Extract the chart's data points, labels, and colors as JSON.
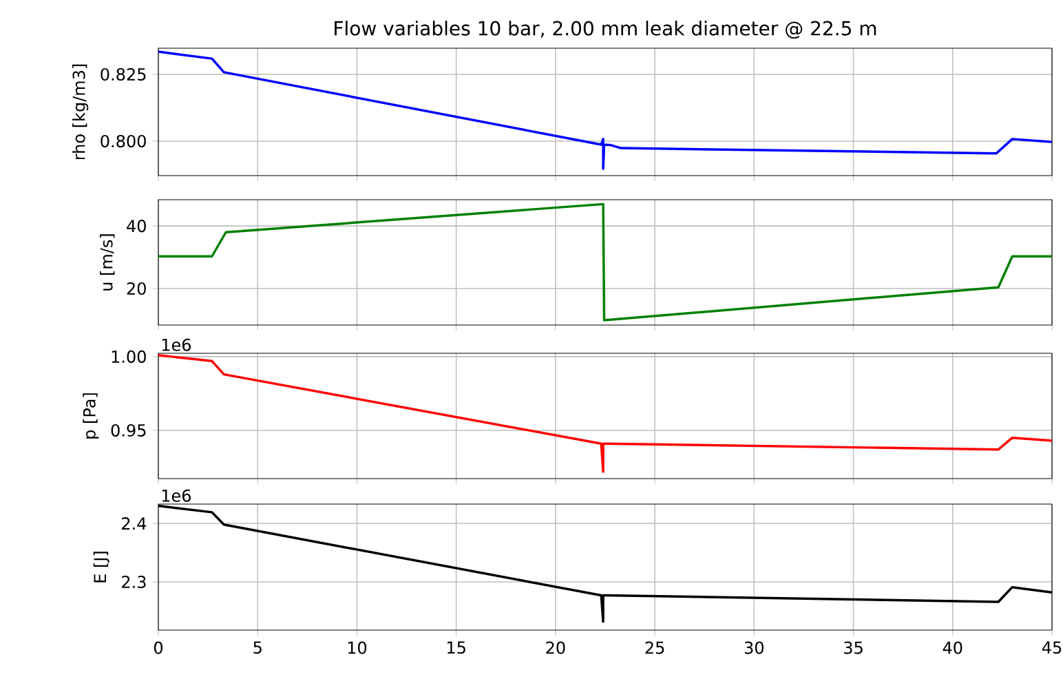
{
  "chart_data": [
    {
      "type": "line",
      "title": "Flow variables 10 bar, 2.00 mm leak diameter @ 22.5 m",
      "ylabel": "rho [kg/m3]",
      "xlim": [
        0,
        45
      ],
      "xticks": [
        0,
        5,
        10,
        15,
        20,
        25,
        30,
        35,
        40,
        45
      ],
      "ylim": [
        0.7871,
        0.8348
      ],
      "yticks": [
        {
          "value": 0.8,
          "label": "0.800"
        },
        0.825
      ],
      "grid": true,
      "tick_labels": "y",
      "series": [
        {
          "color": "#0000ff",
          "x": [
            0,
            2.7,
            3.3,
            22.3,
            22.4,
            22.4,
            22.45,
            22.8,
            23.3,
            42.2,
            43,
            45
          ],
          "values": [
            0.8335,
            0.8309,
            0.8258,
            0.7987,
            0.8008,
            0.7897,
            0.7987,
            0.7985,
            0.7974,
            0.7954,
            0.8008,
            0.7997
          ]
        }
      ]
    },
    {
      "type": "line",
      "ylabel": "u [m/s]",
      "xlim": [
        0,
        45
      ],
      "xticks": [
        0,
        5,
        10,
        15,
        20,
        25,
        30,
        35,
        40,
        45
      ],
      "ylim": [
        8.35,
        48.4
      ],
      "yticks": [
        20,
        40
      ],
      "grid": true,
      "tick_labels": "y",
      "series": [
        {
          "color": "#008000",
          "x": [
            0,
            2.7,
            3.4,
            22.4,
            22.45,
            42.3,
            43,
            45
          ],
          "values": [
            30.3,
            30.3,
            38.0,
            47.0,
            9.9,
            20.4,
            30.3,
            30.3
          ]
        }
      ]
    },
    {
      "type": "line",
      "ylabel": "p [Pa]",
      "annotations": [
        "1e6"
      ],
      "xlim": [
        0,
        45
      ],
      "xticks": [
        0,
        5,
        10,
        15,
        20,
        25,
        30,
        35,
        40,
        45
      ],
      "ylim": [
        0.9173,
        1.0023
      ],
      "yticks": [
        {
          "value": 0.95,
          "label": "0.95"
        },
        {
          "value": 1.0,
          "label": "1.00"
        }
      ],
      "grid": true,
      "tick_labels": "y",
      "series": [
        {
          "color": "#ff0000",
          "x": [
            0,
            2.7,
            3.3,
            22.3,
            22.4,
            22.4,
            22.5,
            42.3,
            43,
            45
          ],
          "values": [
            1.001,
            0.997,
            0.988,
            0.941,
            0.922,
            0.941,
            0.941,
            0.937,
            0.945,
            0.943
          ]
        }
      ]
    },
    {
      "type": "line",
      "ylabel": "E [J]",
      "annotations": [
        "1e6"
      ],
      "xlim": [
        0,
        45
      ],
      "xticks": [
        0,
        5,
        10,
        15,
        20,
        25,
        30,
        35,
        40,
        45
      ],
      "ylim": [
        2.2177,
        2.433
      ],
      "yticks": [
        2.3,
        2.4
      ],
      "grid": true,
      "series": [
        {
          "color": "#000000",
          "x": [
            0,
            2.7,
            3.3,
            22.3,
            22.4,
            22.4,
            22.5,
            42.3,
            43,
            45
          ],
          "values": [
            2.43,
            2.419,
            2.398,
            2.277,
            2.232,
            2.277,
            2.277,
            2.266,
            2.291,
            2.282
          ]
        }
      ]
    }
  ]
}
